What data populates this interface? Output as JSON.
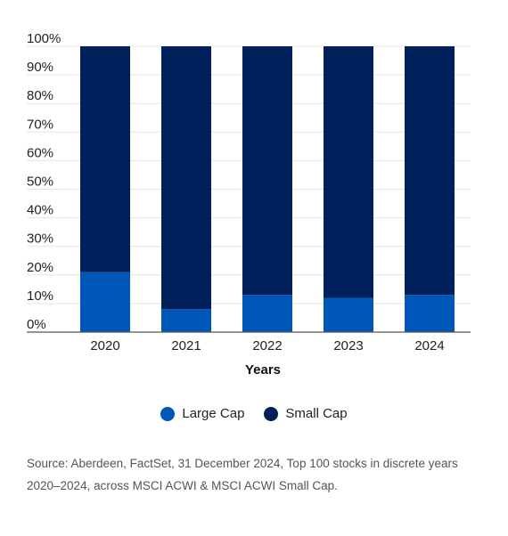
{
  "chart_data": {
    "type": "bar",
    "stacked": true,
    "categories": [
      "2020",
      "2021",
      "2022",
      "2023",
      "2024"
    ],
    "series": [
      {
        "name": "Large Cap",
        "values": [
          21,
          8,
          13,
          12,
          13
        ],
        "color": "#0057b8"
      },
      {
        "name": "Small Cap",
        "values": [
          79,
          92,
          87,
          88,
          87
        ],
        "color": "#00205b"
      }
    ],
    "xlabel": "Years",
    "ylabel": "",
    "ylim": [
      0,
      100
    ],
    "yticks": [
      "0%",
      "10%",
      "20%",
      "30%",
      "40%",
      "50%",
      "60%",
      "70%",
      "80%",
      "90%",
      "100%"
    ],
    "grid": true,
    "legend_position": "bottom"
  },
  "legend": {
    "items": [
      {
        "label": "Large Cap",
        "color": "#0057b8"
      },
      {
        "label": "Small Cap",
        "color": "#00205b"
      }
    ]
  },
  "source": "Source: Aberdeen, FactSet, 31 December 2024, Top 100 stocks in discrete years 2020–2024, across MSCI ACWI & MSCI ACWI Small Cap."
}
